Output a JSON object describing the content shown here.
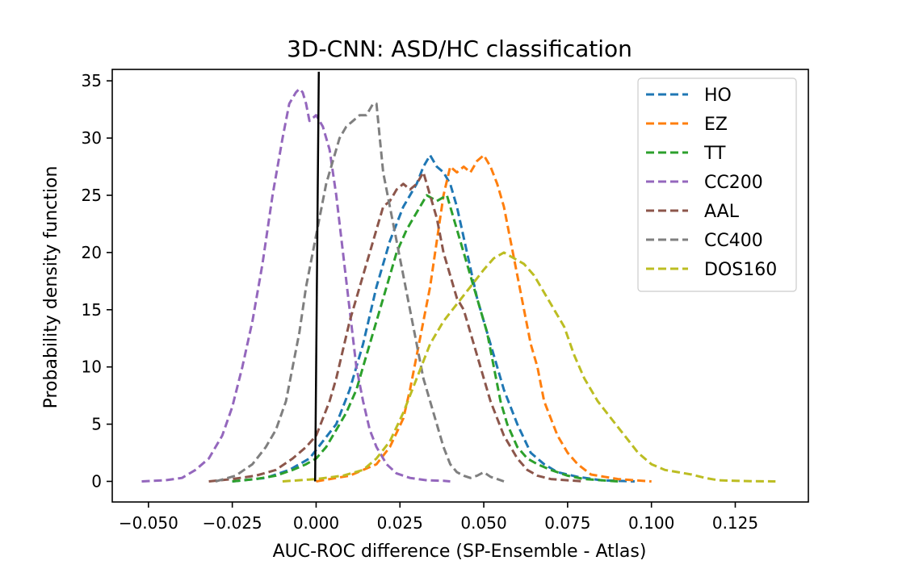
{
  "chart_data": {
    "type": "line",
    "title": "3D-CNN: ASD/HC classification",
    "xlabel": "AUC-ROC difference (SP-Ensemble - Atlas)",
    "ylabel": "Probability density function",
    "xlim": [
      -0.0608,
      0.1468
    ],
    "ylim": [
      -1.8,
      36
    ],
    "xticks": [
      -0.05,
      -0.025,
      0.0,
      0.025,
      0.05,
      0.075,
      0.1,
      0.125
    ],
    "xtick_labels": [
      "−0.050",
      "−0.025",
      "0.000",
      "0.025",
      "0.050",
      "0.075",
      "0.100",
      "0.125"
    ],
    "yticks": [
      0,
      5,
      10,
      15,
      20,
      25,
      30,
      35
    ],
    "ytick_labels": [
      "0",
      "5",
      "10",
      "15",
      "20",
      "25",
      "30",
      "35"
    ],
    "grid": false,
    "legend_position": "top-right",
    "reference_line": {
      "x": [
        -0.0003,
        0.0008
      ],
      "y": [
        0,
        35.8
      ],
      "color": "#000000"
    },
    "series": [
      {
        "name": "HO",
        "color": "#1f77b4",
        "x": [
          -0.025,
          -0.015,
          -0.008,
          -0.002,
          0.002,
          0.006,
          0.01,
          0.014,
          0.018,
          0.022,
          0.026,
          0.03,
          0.032,
          0.034,
          0.036,
          0.038,
          0.04,
          0.042,
          0.045,
          0.048,
          0.052,
          0.056,
          0.06,
          0.064,
          0.068,
          0.072,
          0.078,
          0.085,
          0.095
        ],
        "y": [
          0,
          0.3,
          1,
          2,
          3.5,
          5,
          8,
          12,
          17,
          21,
          24,
          26,
          27.5,
          28.5,
          27.5,
          27,
          26,
          24,
          20,
          16,
          12,
          8,
          5,
          2.5,
          1.5,
          0.8,
          0.4,
          0.1,
          0
        ]
      },
      {
        "name": "EZ",
        "color": "#ff7f0e",
        "x": [
          0.0,
          0.01,
          0.018,
          0.022,
          0.026,
          0.028,
          0.03,
          0.032,
          0.034,
          0.036,
          0.038,
          0.04,
          0.042,
          0.044,
          0.046,
          0.048,
          0.05,
          0.052,
          0.054,
          0.056,
          0.058,
          0.06,
          0.062,
          0.064,
          0.066,
          0.068,
          0.07,
          0.072,
          0.075,
          0.078,
          0.082,
          0.086,
          0.09,
          0.095,
          0.1
        ],
        "y": [
          0,
          0.5,
          1.5,
          3,
          5.5,
          8,
          11,
          14,
          17,
          21,
          25,
          27.5,
          27,
          27.5,
          27,
          28,
          28.5,
          27.5,
          26,
          24,
          21,
          18,
          15,
          12,
          10,
          7,
          5.5,
          4,
          2.5,
          1.5,
          0.6,
          0.4,
          0.2,
          0.1,
          0
        ]
      },
      {
        "name": "TT",
        "color": "#2ca02c",
        "x": [
          -0.025,
          -0.018,
          -0.012,
          -0.007,
          -0.003,
          0.0,
          0.003,
          0.006,
          0.009,
          0.012,
          0.015,
          0.018,
          0.021,
          0.024,
          0.027,
          0.03,
          0.033,
          0.036,
          0.039,
          0.041,
          0.043,
          0.045,
          0.047,
          0.049,
          0.051,
          0.053,
          0.055,
          0.057,
          0.06,
          0.063,
          0.066,
          0.07,
          0.075,
          0.08,
          0.09
        ],
        "y": [
          0,
          0.2,
          0.5,
          1,
          1.5,
          2,
          3,
          4.5,
          6,
          8,
          11,
          14,
          17,
          20,
          22,
          23.5,
          25,
          24.5,
          25,
          23,
          21,
          19,
          17,
          15,
          13,
          10,
          7,
          5,
          3,
          2,
          1.5,
          1,
          0.5,
          0.2,
          0
        ]
      },
      {
        "name": "CC200",
        "color": "#9467bd",
        "x": [
          -0.052,
          -0.045,
          -0.04,
          -0.036,
          -0.032,
          -0.028,
          -0.025,
          -0.022,
          -0.019,
          -0.016,
          -0.013,
          -0.01,
          -0.008,
          -0.006,
          -0.005,
          -0.004,
          -0.003,
          -0.002,
          0.0,
          0.002,
          0.004,
          0.006,
          0.008,
          0.01,
          0.012,
          0.014,
          0.016,
          0.018,
          0.021,
          0.024,
          0.028,
          0.033,
          0.038,
          0.04
        ],
        "y": [
          0,
          0.1,
          0.3,
          1,
          2,
          4,
          6.5,
          10,
          14,
          19,
          25,
          30,
          33,
          34,
          34.3,
          34,
          33,
          31.5,
          32,
          31,
          29,
          25,
          20,
          15,
          10,
          7,
          4.5,
          3,
          1.5,
          0.7,
          0.3,
          0.1,
          0.05,
          0
        ]
      },
      {
        "name": "AAL",
        "color": "#8c564b",
        "x": [
          -0.032,
          -0.025,
          -0.018,
          -0.012,
          -0.007,
          -0.003,
          0.0,
          0.002,
          0.004,
          0.006,
          0.008,
          0.01,
          0.012,
          0.014,
          0.016,
          0.018,
          0.02,
          0.022,
          0.024,
          0.026,
          0.028,
          0.03,
          0.032,
          0.034,
          0.036,
          0.038,
          0.04,
          0.042,
          0.044,
          0.046,
          0.048,
          0.05,
          0.052,
          0.054,
          0.056,
          0.058,
          0.06,
          0.063,
          0.066,
          0.07,
          0.075,
          0.08
        ],
        "y": [
          0,
          0.2,
          0.5,
          1,
          2,
          3,
          4,
          5.5,
          7,
          9,
          11.5,
          14,
          16,
          18,
          20,
          22,
          24,
          24.5,
          25.5,
          26,
          25.5,
          26,
          27,
          25,
          23,
          20,
          18,
          16,
          15,
          13,
          11,
          9,
          7,
          5.5,
          4,
          3,
          2,
          1,
          0.5,
          0.2,
          0.1,
          0
        ]
      },
      {
        "name": "CC400",
        "color": "#7f7f7f",
        "x": [
          -0.03,
          -0.024,
          -0.019,
          -0.015,
          -0.012,
          -0.009,
          -0.007,
          -0.005,
          -0.003,
          -0.001,
          0.001,
          0.003,
          0.005,
          0.007,
          0.009,
          0.011,
          0.013,
          0.015,
          0.017,
          0.018,
          0.019,
          0.02,
          0.022,
          0.024,
          0.026,
          0.028,
          0.03,
          0.032,
          0.034,
          0.036,
          0.038,
          0.04,
          0.042,
          0.044,
          0.046,
          0.048,
          0.05,
          0.052,
          0.054,
          0.056
        ],
        "y": [
          0,
          0.5,
          1.5,
          3,
          4.5,
          7,
          10,
          13,
          17,
          20,
          23,
          26,
          28,
          30,
          31,
          31.5,
          32,
          32,
          33,
          33,
          30,
          27,
          24,
          21,
          18,
          15,
          12,
          9,
          7,
          5,
          3,
          1.5,
          0.8,
          0.5,
          0.3,
          0.5,
          0.8,
          0.4,
          0.2,
          0
        ]
      },
      {
        "name": "DOS160",
        "color": "#bcbd22",
        "x": [
          -0.01,
          0.0,
          0.008,
          0.014,
          0.018,
          0.022,
          0.026,
          0.03,
          0.034,
          0.038,
          0.042,
          0.046,
          0.05,
          0.053,
          0.056,
          0.059,
          0.062,
          0.065,
          0.068,
          0.071,
          0.074,
          0.077,
          0.08,
          0.084,
          0.088,
          0.092,
          0.096,
          0.1,
          0.104,
          0.108,
          0.112,
          0.116,
          0.12,
          0.125,
          0.13,
          0.137
        ],
        "y": [
          0,
          0.2,
          0.5,
          1,
          2,
          3.5,
          6,
          9,
          12,
          14,
          15.5,
          17,
          18.5,
          19.5,
          20,
          19.5,
          19,
          18,
          16.5,
          15,
          13.5,
          11,
          9,
          7,
          5.5,
          4,
          2.5,
          1.5,
          1,
          0.8,
          0.6,
          0.3,
          0.1,
          0.05,
          0.02,
          0
        ]
      }
    ]
  }
}
